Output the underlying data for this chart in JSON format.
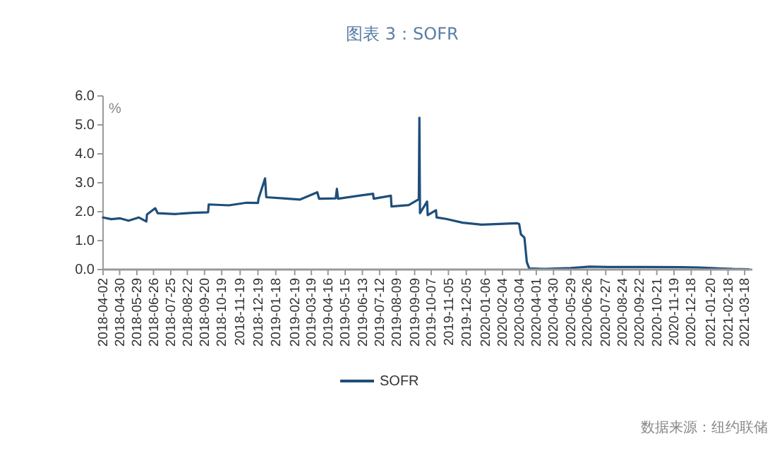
{
  "chart_data": {
    "type": "line",
    "title": "图表 3：SOFR",
    "ylabel": "%",
    "annotations": [
      "数据来源：纽约联储"
    ],
    "x": [
      "2018-04-02",
      "2018-04-16",
      "2018-05-01",
      "2018-05-15",
      "2018-06-01",
      "2018-06-14",
      "2018-06-15",
      "2018-06-29",
      "2018-07-03",
      "2018-08-01",
      "2018-08-31",
      "2018-09-26",
      "2018-09-27",
      "2018-10-31",
      "2018-11-30",
      "2018-12-19",
      "2018-12-20",
      "2018-12-31",
      "2019-01-02",
      "2019-01-31",
      "2019-02-28",
      "2019-03-29",
      "2019-04-01",
      "2019-04-29",
      "2019-05-01",
      "2019-05-03",
      "2019-07-01",
      "2019-07-02",
      "2019-07-31",
      "2019-08-01",
      "2019-08-30",
      "2019-09-16",
      "2019-09-17",
      "2019-09-18",
      "2019-09-30",
      "2019-10-01",
      "2019-10-15",
      "2019-10-16",
      "2019-11-01",
      "2019-11-29",
      "2019-12-31",
      "2020-02-28",
      "2020-03-03",
      "2020-03-06",
      "2020-03-12",
      "2020-03-16",
      "2020-03-20",
      "2020-04-15",
      "2020-05-29",
      "2020-06-30",
      "2020-07-31",
      "2020-09-30",
      "2020-11-30",
      "2020-12-31",
      "2021-02-26",
      "2021-03-25"
    ],
    "series": [
      {
        "name": "SOFR",
        "color": "#1f4e79",
        "values": [
          1.8,
          1.74,
          1.77,
          1.69,
          1.8,
          1.66,
          1.9,
          2.12,
          1.95,
          1.92,
          1.96,
          1.98,
          2.25,
          2.22,
          2.31,
          2.3,
          2.45,
          3.15,
          2.5,
          2.46,
          2.42,
          2.67,
          2.45,
          2.46,
          2.79,
          2.45,
          2.62,
          2.45,
          2.55,
          2.18,
          2.23,
          2.43,
          5.25,
          1.95,
          2.35,
          1.88,
          2.05,
          1.8,
          1.75,
          1.62,
          1.55,
          1.6,
          1.58,
          1.22,
          1.1,
          0.26,
          0.04,
          0.02,
          0.05,
          0.1,
          0.09,
          0.09,
          0.08,
          0.07,
          0.02,
          0.01
        ]
      }
    ],
    "xlim": [
      "2018-04-02",
      "2021-03-31"
    ],
    "xticks": [
      "2018-04-02",
      "2018-04-30",
      "2018-05-29",
      "2018-06-26",
      "2018-07-25",
      "2018-08-22",
      "2018-09-20",
      "2018-10-19",
      "2018-11-19",
      "2018-12-19",
      "2019-01-18",
      "2019-02-19",
      "2019-03-19",
      "2019-04-16",
      "2019-05-15",
      "2019-06-13",
      "2019-07-12",
      "2019-08-09",
      "2019-09-09",
      "2019-10-07",
      "2019-11-05",
      "2019-12-05",
      "2020-01-06",
      "2020-02-04",
      "2020-03-04",
      "2020-04-01",
      "2020-04-30",
      "2020-05-29",
      "2020-06-26",
      "2020-07-27",
      "2020-08-24",
      "2020-09-22",
      "2020-10-21",
      "2020-11-19",
      "2020-12-18",
      "2021-01-20",
      "2021-02-18",
      "2021-03-18"
    ],
    "ylim": [
      0,
      6
    ],
    "yticks": [
      {
        "value": 0,
        "label": "0.0"
      },
      {
        "value": 1,
        "label": "1.0"
      },
      {
        "value": 2,
        "label": "2.0"
      },
      {
        "value": 3,
        "label": "3.0"
      },
      {
        "value": 4,
        "label": "4.0"
      },
      {
        "value": 5,
        "label": "5.0"
      },
      {
        "value": 6,
        "label": "6.0"
      }
    ],
    "grid": false,
    "legend": "bottom",
    "marker": "none",
    "line_style": "solid"
  }
}
